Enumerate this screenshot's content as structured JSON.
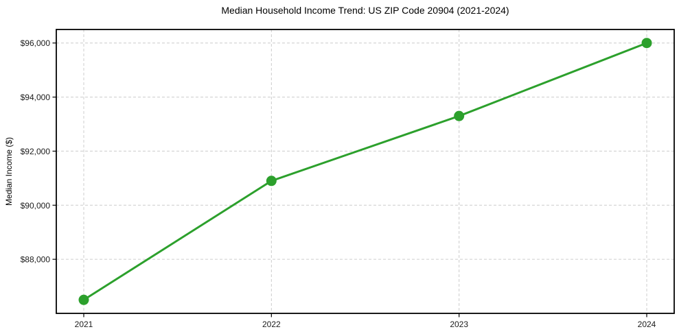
{
  "figure": {
    "background_color": "#ffffff"
  },
  "chart_data": {
    "type": "line",
    "title": "Median Household Income Trend: US ZIP Code 20904 (2021-2024)",
    "xlabel": "",
    "ylabel": "Median Income ($)",
    "categories": [
      "2021",
      "2022",
      "2023",
      "2024"
    ],
    "values": [
      86500,
      90900,
      93300,
      96000
    ],
    "y_ticks": [
      88000,
      90000,
      92000,
      94000,
      96000
    ],
    "y_tick_labels": [
      "$88,000",
      "$90,000",
      "$92,000",
      "$94,000",
      "$96,000"
    ],
    "ylim": [
      86000,
      96500
    ],
    "grid": true,
    "grid_style": "dashed",
    "legend_position": "none",
    "colors": {
      "line": "#2ca02c",
      "marker": "#2ca02c",
      "grid": "#cccccc",
      "spine": "#000000",
      "tick_text": "#1a1a1a",
      "title_text": "#000000"
    },
    "marker_shape": "circle"
  }
}
